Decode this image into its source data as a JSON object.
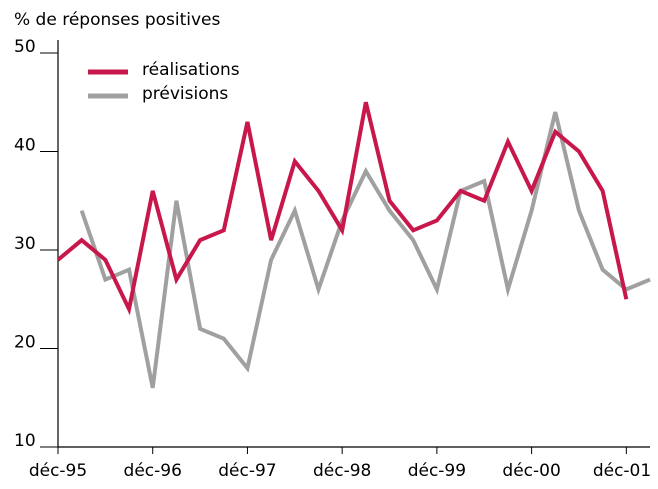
{
  "chart_data": {
    "type": "line",
    "ylabel": "% de réponses positives",
    "categories": [
      "déc-95",
      null,
      null,
      null,
      "déc-96",
      null,
      null,
      null,
      "déc-97",
      null,
      null,
      null,
      "déc-98",
      null,
      null,
      null,
      "déc-99",
      null,
      null,
      null,
      "déc-00",
      null,
      null,
      null,
      "déc-01",
      null
    ],
    "series": [
      {
        "name": "réalisations",
        "color": "#c8174b",
        "values": [
          29,
          31,
          29,
          24,
          36,
          27,
          31,
          32,
          43,
          31,
          39,
          36,
          32,
          45,
          35,
          32,
          33,
          36,
          35,
          41,
          36,
          42,
          40,
          36,
          25,
          null
        ]
      },
      {
        "name": "prévisions",
        "color": "#a0a0a0",
        "values": [
          null,
          34,
          27,
          28,
          16,
          35,
          22,
          21,
          18,
          29,
          34,
          26,
          33,
          38,
          34,
          31,
          26,
          36,
          37,
          26,
          34,
          44,
          34,
          28,
          26,
          27
        ]
      }
    ],
    "ylim": [
      10,
      50
    ],
    "yticks": [
      10,
      20,
      30,
      40,
      50
    ],
    "legend": "upper-left"
  }
}
